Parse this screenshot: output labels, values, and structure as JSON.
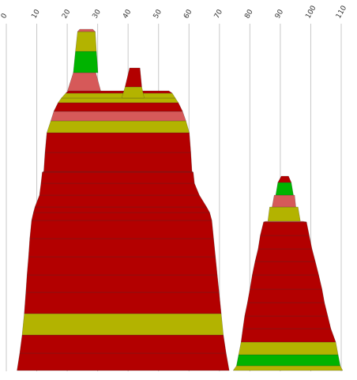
{
  "chart_data": {
    "type": "area",
    "x_axis": {
      "position": "top",
      "ticks": [
        "0",
        "10",
        "20",
        "30",
        "40",
        "50",
        "60",
        "70",
        "80",
        "90",
        "100",
        "110"
      ],
      "range": [
        0,
        110
      ]
    },
    "grid": true,
    "colors": {
      "dark_red": "#b30000",
      "light_red": "#d65959",
      "olive": "#b3b300",
      "green": "#00b300",
      "band_outline": "#333333"
    },
    "shapes": [
      {
        "name": "left-mountain",
        "bands": [
          {
            "color": "dark_red",
            "l0": 3.5,
            "r0": 73.2,
            "l1": 4.4,
            "r1": 72.2
          },
          {
            "color": "dark_red",
            "l0": 4.4,
            "r0": 72.2,
            "l1": 5.2,
            "r1": 71.3
          },
          {
            "color": "olive",
            "l0": 5.2,
            "r0": 71.3,
            "l1": 5.9,
            "r1": 70.6
          },
          {
            "color": "dark_red",
            "l0": 5.9,
            "r0": 70.6,
            "l1": 6.4,
            "r1": 69.9
          },
          {
            "color": "dark_red",
            "l0": 6.4,
            "r0": 69.9,
            "l1": 6.8,
            "r1": 69.3
          },
          {
            "color": "dark_red",
            "l0": 6.8,
            "r0": 69.3,
            "l1": 7.3,
            "r1": 68.7
          },
          {
            "color": "dark_red",
            "l0": 7.3,
            "r0": 68.7,
            "l1": 7.7,
            "r1": 68.1
          },
          {
            "color": "dark_red",
            "l0": 7.7,
            "r0": 68.1,
            "l1": 8.3,
            "r1": 67.5
          },
          {
            "color": "dark_red",
            "l0": 8.3,
            "r0": 67.5,
            "l1": 8.9,
            "r1": 66.8
          },
          {
            "color": "dark_red",
            "l0": 8.9,
            "r0": 66.8,
            "l1": 9.4,
            "r1": 65.8
          },
          {
            "color": "dark_red",
            "l0": 9.4,
            "r0": 65.8,
            "l1": 10.9,
            "r1": 63.4
          },
          {
            "color": "dark_red",
            "l0": 10.9,
            "r0": 63.4,
            "l1": 11.4,
            "r1": 61.8
          },
          {
            "color": "dark_red",
            "l0": 11.4,
            "r0": 61.8,
            "l1": 11.8,
            "r1": 61.4
          },
          {
            "color": "dark_red",
            "l0": 11.8,
            "r0": 61.4,
            "l1": 12.3,
            "r1": 61.0
          },
          {
            "color": "dark_red",
            "l0": 12.3,
            "r0": 61.0,
            "l1": 12.7,
            "r1": 60.6
          },
          {
            "color": "dark_red",
            "l0": 12.7,
            "r0": 60.6,
            "l1": 13.3,
            "r1": 60.1
          },
          {
            "color": "olive",
            "l0": 13.3,
            "r0": 60.1,
            "l1": 14.6,
            "r1": 59.0
          },
          {
            "color": "light_red",
            "l0": 14.6,
            "r0": 59.0,
            "l1": 15.6,
            "r1": 57.9
          },
          {
            "color": "dark_red",
            "l0": 15.6,
            "r0": 57.9,
            "l1": 17.0,
            "r1": 56.5
          },
          {
            "color": "olive",
            "l0": 17.0,
            "r0": 56.5,
            "l1": 18.1,
            "r1": 55.5
          },
          {
            "color": "olive",
            "l0": 18.1,
            "r0": 55.5,
            "l1": 19.5,
            "r1": 54.5
          },
          {
            "color": "dark_red",
            "l0": 19.5,
            "r0": 54.5,
            "l1": 20.3,
            "r1": 53.4
          },
          {
            "color": "light_red",
            "l0": 20.1,
            "r0": 31.0,
            "l1": 22.0,
            "r1": 29.4
          },
          {
            "color": "green",
            "l0": 22.0,
            "r0": 30.1,
            "l1": 22.7,
            "r1": 29.6
          },
          {
            "color": "olive",
            "l0": 22.7,
            "r0": 29.6,
            "l1": 23.4,
            "r1": 29.2
          },
          {
            "color": "light_red",
            "l0": 23.4,
            "r0": 29.2,
            "l1": 24.1,
            "r1": 28.4
          },
          {
            "color": "olive",
            "l0": 37.9,
            "r0": 45.3,
            "l1": 39.0,
            "r1": 44.5
          },
          {
            "color": "dark_red",
            "l0": 39.0,
            "r0": 44.5,
            "l1": 40.5,
            "r1": 43.9
          }
        ]
      },
      {
        "name": "right-mountain",
        "bands": [
          {
            "color": "olive",
            "l0": 74.5,
            "r0": 110.5,
            "l1": 75.6,
            "r1": 109.7
          },
          {
            "color": "green",
            "l0": 75.6,
            "r0": 109.7,
            "l1": 76.3,
            "r1": 109.0
          },
          {
            "color": "olive",
            "l0": 76.3,
            "r0": 109.0,
            "l1": 77.1,
            "r1": 108.2
          },
          {
            "color": "dark_red",
            "l0": 77.1,
            "r0": 108.2,
            "l1": 77.7,
            "r1": 106.6
          },
          {
            "color": "dark_red",
            "l0": 77.7,
            "r0": 106.6,
            "l1": 78.3,
            "r1": 105.6
          },
          {
            "color": "dark_red",
            "l0": 78.3,
            "r0": 105.6,
            "l1": 79.2,
            "r1": 104.5
          },
          {
            "color": "dark_red",
            "l0": 79.2,
            "r0": 104.5,
            "l1": 80.0,
            "r1": 103.7
          },
          {
            "color": "dark_red",
            "l0": 80.0,
            "r0": 103.7,
            "l1": 80.8,
            "r1": 102.6
          },
          {
            "color": "dark_red",
            "l0": 80.8,
            "r0": 102.6,
            "l1": 81.7,
            "r1": 101.5
          },
          {
            "color": "dark_red",
            "l0": 81.7,
            "r0": 101.5,
            "l1": 82.7,
            "r1": 100.4
          },
          {
            "color": "dark_red",
            "l0": 82.7,
            "r0": 100.4,
            "l1": 83.4,
            "r1": 99.5
          },
          {
            "color": "dark_red",
            "l0": 83.4,
            "r0": 99.5,
            "l1": 84.5,
            "r1": 98.6
          },
          {
            "color": "light_red",
            "l0": 84.5,
            "r0": 98.6,
            "l1": 85.2,
            "r1": 97.4
          },
          {
            "color": "olive",
            "l0": 85.9,
            "r0": 96.6,
            "l1": 86.5,
            "r1": 95.8
          },
          {
            "color": "light_red",
            "l0": 87.3,
            "r0": 95.1,
            "l1": 88.0,
            "r1": 94.7
          },
          {
            "color": "green",
            "l0": 88.5,
            "r0": 94.3,
            "l1": 89.2,
            "r1": 93.6
          },
          {
            "color": "dark_red",
            "l0": 89.2,
            "r0": 93.6,
            "l1": 90.3,
            "r1": 92.7
          }
        ]
      }
    ]
  }
}
